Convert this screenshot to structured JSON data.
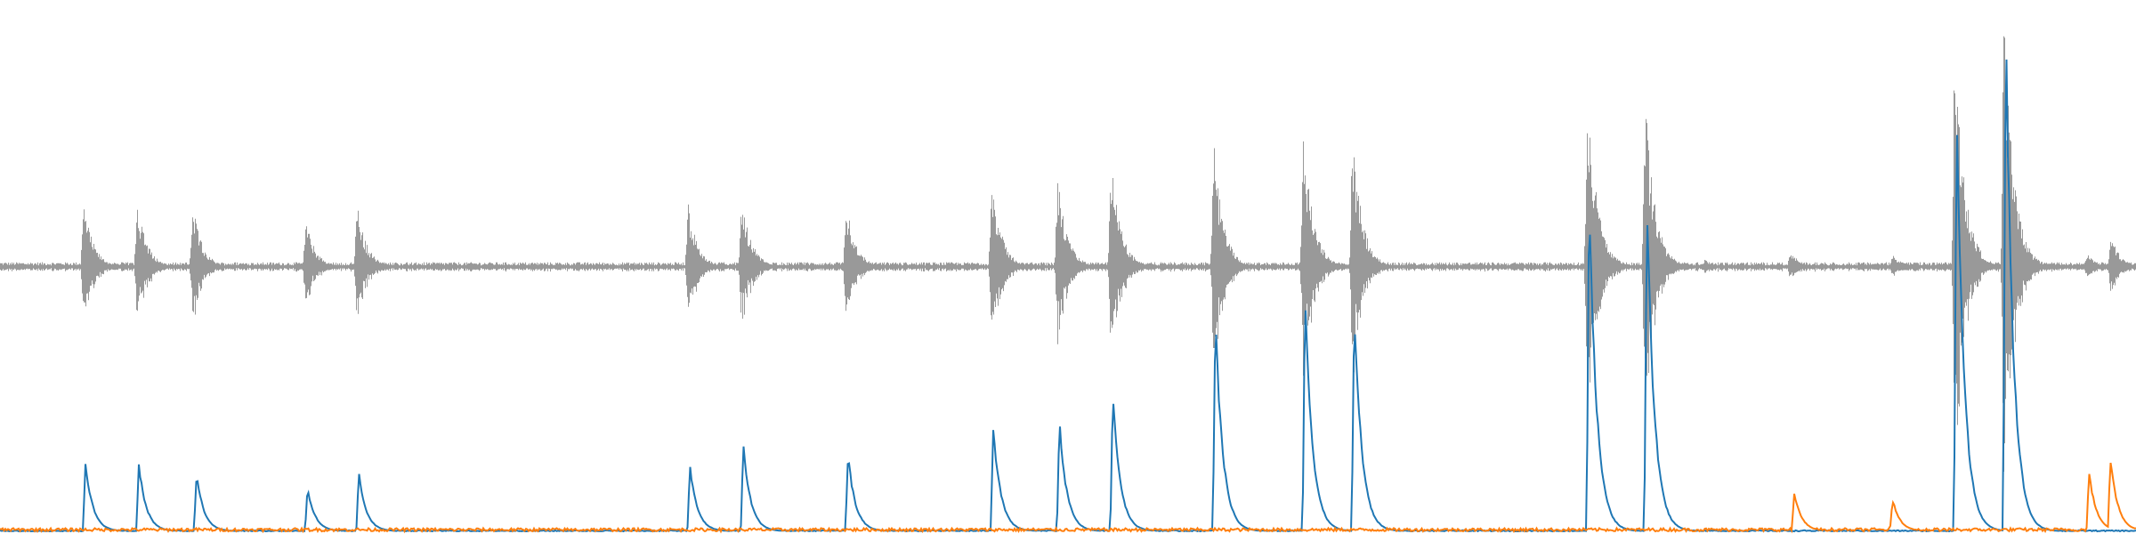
{
  "chart_data": {
    "type": "line",
    "title": "",
    "xlabel": "",
    "ylabel": "",
    "grid": false,
    "legend": "none",
    "axes_visible": false,
    "x_range": [
      0,
      1
    ],
    "waveform": {
      "color": "#999999",
      "baseline_noise": 0.012,
      "ylim": [
        -1.0,
        1.0
      ],
      "bursts": [
        {
          "t": 0.039,
          "amp": 0.25
        },
        {
          "t": 0.064,
          "amp": 0.26
        },
        {
          "t": 0.09,
          "amp": 0.24
        },
        {
          "t": 0.143,
          "amp": 0.18
        },
        {
          "t": 0.167,
          "amp": 0.24
        },
        {
          "t": 0.322,
          "amp": 0.24
        },
        {
          "t": 0.347,
          "amp": 0.28
        },
        {
          "t": 0.396,
          "amp": 0.25
        },
        {
          "t": 0.464,
          "amp": 0.36
        },
        {
          "t": 0.495,
          "amp": 0.34
        },
        {
          "t": 0.52,
          "amp": 0.42
        },
        {
          "t": 0.568,
          "amp": 0.48
        },
        {
          "t": 0.61,
          "amp": 0.54
        },
        {
          "t": 0.633,
          "amp": 0.52
        },
        {
          "t": 0.743,
          "amp": 0.72
        },
        {
          "t": 0.77,
          "amp": 0.66
        },
        {
          "t": 0.798,
          "amp": 0.03
        },
        {
          "t": 0.838,
          "amp": 0.06
        },
        {
          "t": 0.886,
          "amp": 0.05
        },
        {
          "t": 0.915,
          "amp": 0.92
        },
        {
          "t": 0.938,
          "amp": 1.0
        },
        {
          "t": 0.977,
          "amp": 0.05
        },
        {
          "t": 0.988,
          "amp": 0.12
        }
      ]
    },
    "series": [
      {
        "color": "#1f77b4",
        "ylim": [
          0,
          1.0
        ],
        "peaks": [
          {
            "t": 0.04,
            "v": 0.134
          },
          {
            "t": 0.065,
            "v": 0.131
          },
          {
            "t": 0.092,
            "v": 0.113
          },
          {
            "t": 0.144,
            "v": 0.085
          },
          {
            "t": 0.168,
            "v": 0.113
          },
          {
            "t": 0.323,
            "v": 0.127
          },
          {
            "t": 0.348,
            "v": 0.166
          },
          {
            "t": 0.397,
            "v": 0.151
          },
          {
            "t": 0.465,
            "v": 0.206
          },
          {
            "t": 0.496,
            "v": 0.212
          },
          {
            "t": 0.521,
            "v": 0.269
          },
          {
            "t": 0.569,
            "v": 0.418
          },
          {
            "t": 0.611,
            "v": 0.464
          },
          {
            "t": 0.634,
            "v": 0.443
          },
          {
            "t": 0.744,
            "v": 0.662
          },
          {
            "t": 0.771,
            "v": 0.645
          },
          {
            "t": 0.916,
            "v": 0.84
          },
          {
            "t": 0.939,
            "v": 1.0
          }
        ]
      },
      {
        "color": "#ff7f0e",
        "ylim": [
          0,
          1.0
        ],
        "noise": 0.006,
        "peaks": [
          {
            "t": 0.84,
            "v": 0.075
          },
          {
            "t": 0.886,
            "v": 0.063
          },
          {
            "t": 0.978,
            "v": 0.115
          },
          {
            "t": 0.988,
            "v": 0.145
          }
        ]
      }
    ]
  }
}
